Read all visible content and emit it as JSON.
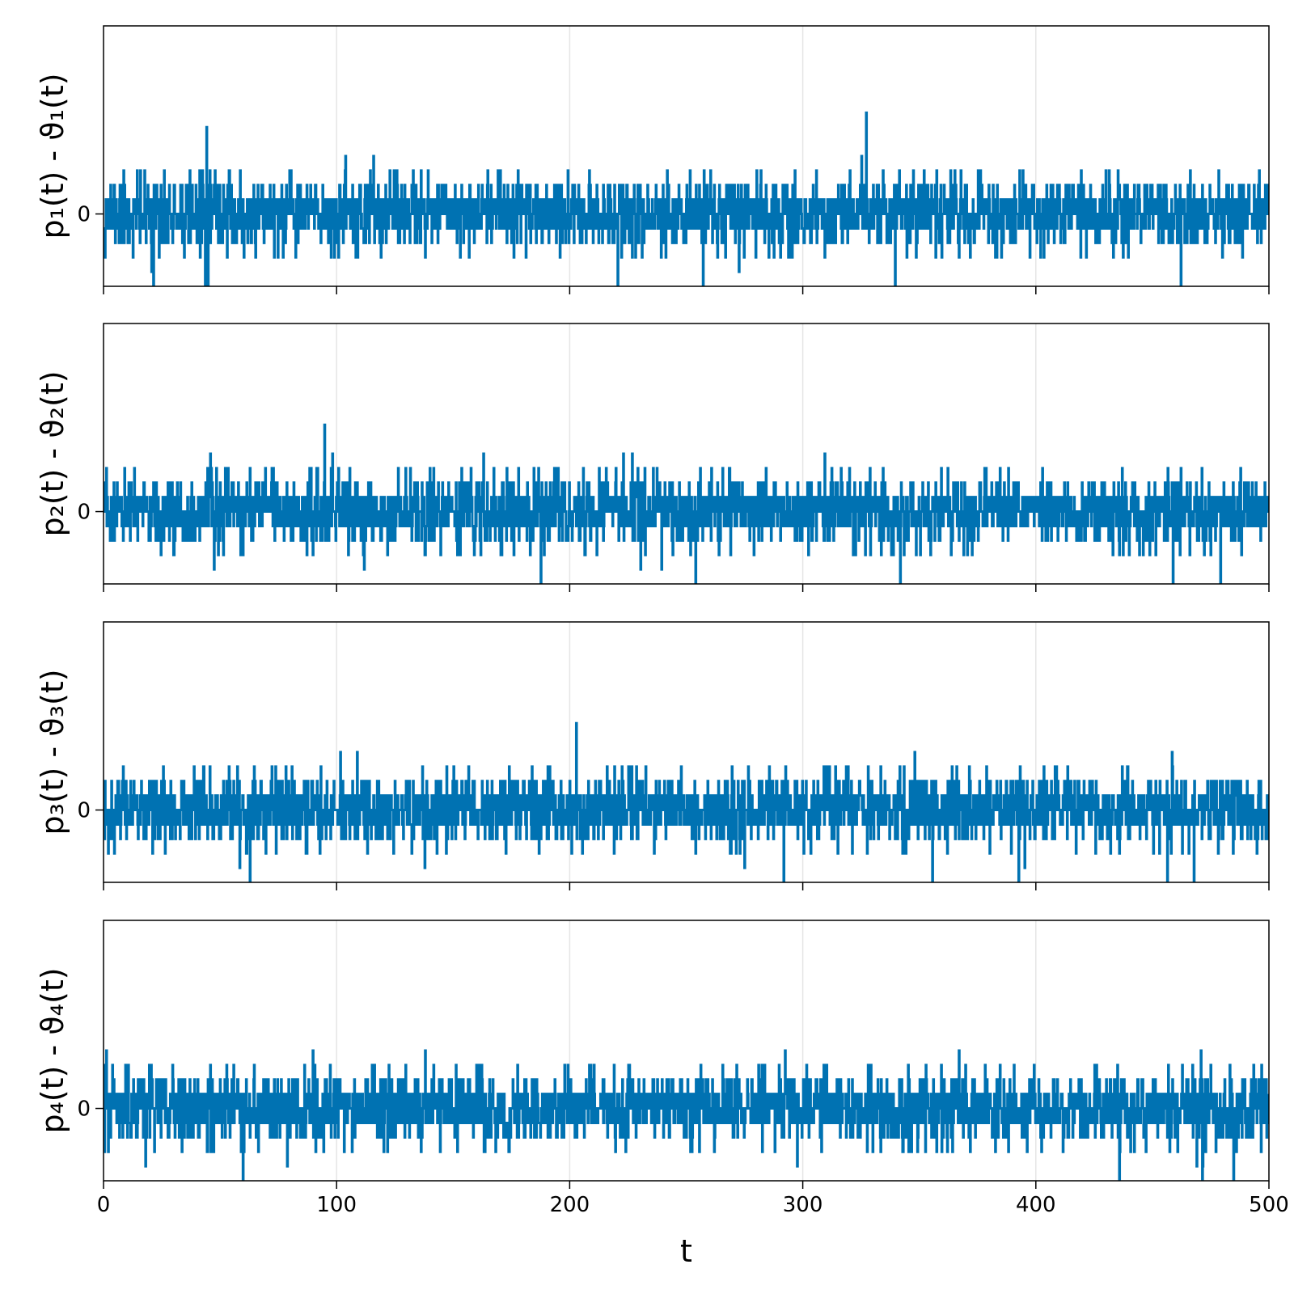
{
  "chart_data": [
    {
      "type": "line",
      "ylabel": "p₁(t) - ϑ₁(t)",
      "yticks": [
        0
      ],
      "ylim": [
        -2.5,
        6.5
      ],
      "xlim": [
        0,
        500
      ],
      "xticks": [
        0,
        100,
        200,
        300,
        400,
        500
      ],
      "show_xtick_labels": false,
      "grid": true,
      "series": [
        {
          "color": "#0072b2",
          "step": 0.2,
          "level_step": 0.5,
          "max_levels": 6,
          "min_levels": -5,
          "seed": 11,
          "spikes": [
            {
              "t": 44.2,
              "level": 6
            },
            {
              "t": 327.1,
              "level": 7
            },
            {
              "t": 21.3,
              "level": -5
            },
            {
              "t": 43.6,
              "level": -5
            },
            {
              "t": 44.9,
              "level": -5
            },
            {
              "t": 220.6,
              "level": -5
            },
            {
              "t": 257.2,
              "level": -5
            },
            {
              "t": 339.5,
              "level": -5
            },
            {
              "t": 462.1,
              "level": -5
            }
          ]
        }
      ]
    },
    {
      "type": "line",
      "ylabel": "p₂(t) - ϑ₂(t)",
      "yticks": [
        0
      ],
      "ylim": [
        -2.5,
        6.5
      ],
      "xlim": [
        0,
        500
      ],
      "xticks": [
        0,
        100,
        200,
        300,
        400,
        500
      ],
      "show_xtick_labels": false,
      "grid": true,
      "series": [
        {
          "color": "#0072b2",
          "step": 0.2,
          "level_step": 0.5,
          "max_levels": 5,
          "min_levels": -5,
          "seed": 23,
          "spikes": [
            {
              "t": 94.8,
              "level": 6
            },
            {
              "t": 253.9,
              "level": -6
            },
            {
              "t": 341.8,
              "level": -6
            },
            {
              "t": 187.5,
              "level": -5
            },
            {
              "t": 458.9,
              "level": -5
            },
            {
              "t": 479.1,
              "level": -5
            }
          ]
        }
      ]
    },
    {
      "type": "line",
      "ylabel": "p₃(t) - ϑ₃(t)",
      "yticks": [
        0
      ],
      "ylim": [
        -2.5,
        6.5
      ],
      "xlim": [
        0,
        500
      ],
      "xticks": [
        0,
        100,
        200,
        300,
        400,
        500
      ],
      "show_xtick_labels": false,
      "grid": true,
      "series": [
        {
          "color": "#0072b2",
          "step": 0.2,
          "level_step": 0.5,
          "max_levels": 5,
          "min_levels": -5,
          "seed": 37,
          "spikes": [
            {
              "t": 202.8,
              "level": 6
            },
            {
              "t": 62.7,
              "level": -6
            },
            {
              "t": 291.8,
              "level": -5
            },
            {
              "t": 355.6,
              "level": -5
            },
            {
              "t": 392.5,
              "level": -5
            },
            {
              "t": 467.7,
              "level": -5
            }
          ]
        }
      ]
    },
    {
      "type": "line",
      "xlabel": "t",
      "ylabel": "p₄(t) - ϑ₄(t)",
      "yticks": [
        0
      ],
      "ylim": [
        -2.5,
        6.5
      ],
      "xlim": [
        0,
        500
      ],
      "xticks": [
        0,
        100,
        200,
        300,
        400,
        500
      ],
      "show_xtick_labels": true,
      "grid": true,
      "series": [
        {
          "color": "#0072b2",
          "step": 0.2,
          "level_step": 0.5,
          "max_levels": 5,
          "min_levels": -5,
          "seed": 53,
          "spikes": [
            {
              "t": 59.8,
              "level": -6
            },
            {
              "t": 471.4,
              "level": -7
            },
            {
              "t": 435.9,
              "level": -6
            },
            {
              "t": 484.7,
              "level": -6
            },
            {
              "t": 1.1,
              "level": 4
            }
          ]
        }
      ]
    }
  ]
}
